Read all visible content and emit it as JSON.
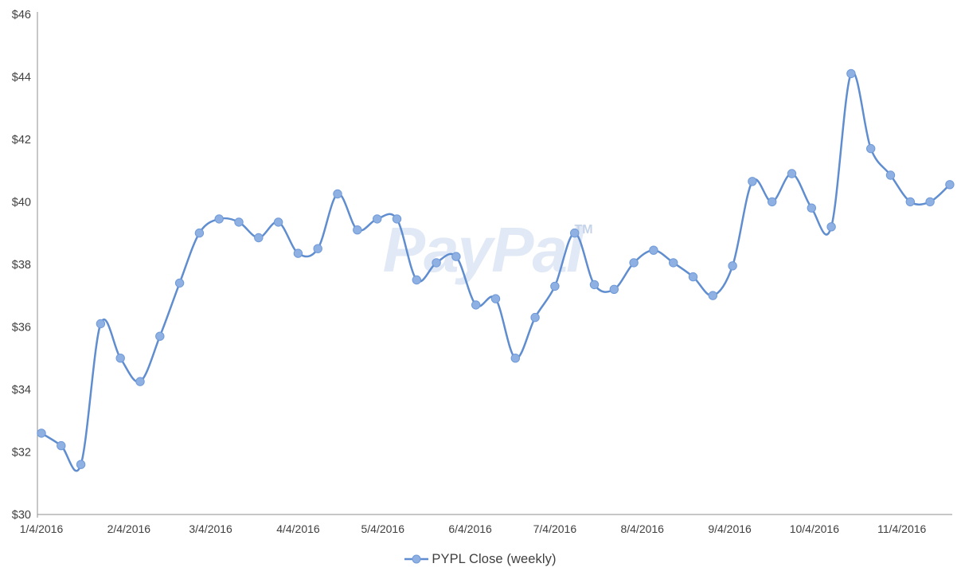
{
  "chart_data": {
    "type": "line",
    "title": "",
    "xlabel": "",
    "ylabel": "",
    "ylim": [
      30,
      46
    ],
    "y_tick_step": 2,
    "grid": false,
    "legend_position": "bottom",
    "smooth": true,
    "marker": "circle",
    "y_tick_labels": [
      "$30",
      "$32",
      "$34",
      "$36",
      "$38",
      "$40",
      "$42",
      "$44",
      "$46"
    ],
    "x_tick_labels": [
      "1/4/2016",
      "2/4/2016",
      "3/4/2016",
      "4/4/2016",
      "5/4/2016",
      "6/4/2016",
      "7/4/2016",
      "8/4/2016",
      "9/4/2016",
      "10/4/2016",
      "11/4/2016"
    ],
    "x_dates": [
      "1/4/2016",
      "1/11/2016",
      "1/18/2016",
      "1/25/2016",
      "2/1/2016",
      "2/8/2016",
      "2/15/2016",
      "2/22/2016",
      "2/29/2016",
      "3/7/2016",
      "3/14/2016",
      "3/21/2016",
      "3/28/2016",
      "4/4/2016",
      "4/11/2016",
      "4/18/2016",
      "4/25/2016",
      "5/2/2016",
      "5/9/2016",
      "5/16/2016",
      "5/23/2016",
      "5/30/2016",
      "6/6/2016",
      "6/13/2016",
      "6/20/2016",
      "6/27/2016",
      "7/4/2016",
      "7/11/2016",
      "7/18/2016",
      "7/25/2016",
      "8/1/2016",
      "8/8/2016",
      "8/15/2016",
      "8/22/2016",
      "8/29/2016",
      "9/5/2016",
      "9/12/2016",
      "9/19/2016",
      "9/26/2016",
      "10/3/2016",
      "10/10/2016",
      "10/17/2016",
      "10/24/2016",
      "10/31/2016",
      "11/7/2016",
      "11/14/2016",
      "11/21/2016"
    ],
    "series": [
      {
        "name": "PYPL Close (weekly)",
        "values": [
          32.6,
          32.2,
          31.6,
          36.1,
          35.0,
          34.25,
          35.7,
          37.4,
          39.0,
          39.45,
          39.35,
          38.85,
          39.35,
          38.35,
          38.5,
          40.25,
          39.1,
          39.45,
          39.45,
          37.5,
          38.05,
          38.25,
          36.7,
          36.9,
          35.0,
          36.3,
          37.3,
          39.0,
          37.35,
          37.2,
          38.05,
          38.45,
          38.05,
          37.6,
          37.0,
          37.95,
          40.65,
          40.0,
          40.9,
          39.8,
          39.2,
          44.1,
          41.7,
          40.85,
          40.0,
          40.0,
          40.55
        ]
      }
    ]
  },
  "watermark": {
    "text": "PayPal",
    "superscript": "TM"
  },
  "colors": {
    "line": "#5f8dcf",
    "marker_fill": "#8fb0e2",
    "marker_stroke": "#6f9ad8",
    "axis": "#8f8f8f",
    "tick_text": "#404040",
    "watermark": "#e0e9f5",
    "watermark_tm": "#c6d4e9",
    "legend_text": "#3f3f3f"
  }
}
